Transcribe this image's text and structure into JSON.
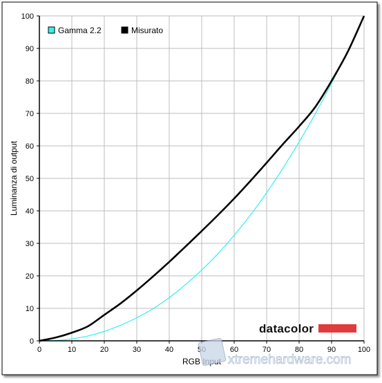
{
  "chart_data": {
    "type": "line",
    "title": "",
    "xlabel": "RGB Input",
    "ylabel": "Luminanza di output",
    "xlim": [
      0,
      100
    ],
    "ylim": [
      0,
      100
    ],
    "xticks": [
      0,
      10,
      20,
      30,
      40,
      50,
      60,
      70,
      80,
      90,
      100
    ],
    "yticks": [
      0,
      10,
      20,
      30,
      40,
      50,
      60,
      70,
      80,
      90,
      100
    ],
    "grid": true,
    "legend_position": "top-left",
    "series": [
      {
        "name": "Gamma 2.2",
        "color": "#33f0f0",
        "x": [
          0,
          5,
          10,
          15,
          20,
          25,
          30,
          35,
          40,
          45,
          50,
          55,
          60,
          65,
          70,
          75,
          80,
          85,
          90,
          95,
          100
        ],
        "y": [
          0,
          0.1,
          0.6,
          1.5,
          2.9,
          4.8,
          7.1,
          9.9,
          13.3,
          17.3,
          21.8,
          26.8,
          32.5,
          38.7,
          45.6,
          53.1,
          61.2,
          69.9,
          79.3,
          89.3,
          100
        ]
      },
      {
        "name": "Misurato",
        "color": "#000000",
        "x": [
          0,
          5,
          10,
          15,
          20,
          25,
          30,
          35,
          40,
          45,
          50,
          55,
          60,
          65,
          70,
          75,
          80,
          85,
          90,
          95,
          100
        ],
        "y": [
          0,
          1.0,
          2.5,
          4.5,
          8.0,
          11.5,
          15.5,
          19.8,
          24.3,
          29.0,
          33.8,
          38.7,
          43.8,
          49.2,
          54.8,
          60.5,
          66.0,
          72.0,
          80.0,
          89.0,
          100
        ]
      }
    ],
    "watermarks": [
      "datacolor",
      "xtremehardware.com"
    ]
  }
}
